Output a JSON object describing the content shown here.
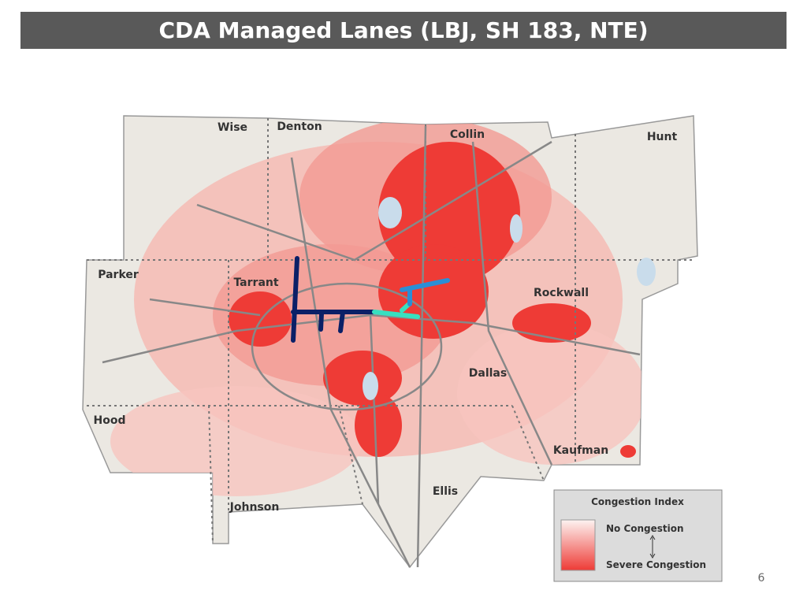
{
  "header": {
    "title": "CDA Managed Lanes (LBJ, SH 183, NTE)"
  },
  "map": {
    "counties": [
      "Wise",
      "Denton",
      "Collin",
      "Hunt",
      "Parker",
      "Tarrant",
      "Rockwall",
      "Dallas",
      "Hood",
      "Kaufman",
      "Johnson",
      "Ellis"
    ]
  },
  "legend": {
    "title": "Congestion Index",
    "low": "No Congestion",
    "high": "Severe Congestion"
  },
  "page_number": "6"
}
